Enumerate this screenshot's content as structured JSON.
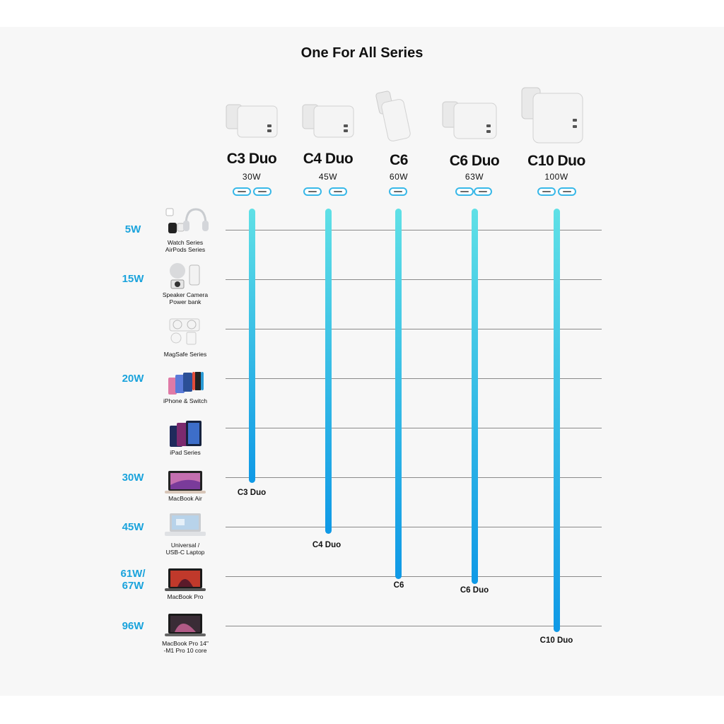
{
  "title": "One For All Series",
  "products": [
    {
      "name": "C3 Duo",
      "power": "30W",
      "ports": 2,
      "end_label": "C3 Duo"
    },
    {
      "name": "C4 Duo",
      "power": "45W",
      "ports": 2,
      "end_label": "C4 Duo"
    },
    {
      "name": "C6",
      "power": "60W",
      "ports": 1,
      "end_label": "C6"
    },
    {
      "name": "C6 Duo",
      "power": "63W",
      "ports": 2,
      "end_label": "C6 Duo"
    },
    {
      "name": "C10 Duo",
      "power": "100W",
      "ports": 2,
      "end_label": "C10 Duo"
    }
  ],
  "levels": {
    "w5": "5W",
    "w15": "15W",
    "w20": "20W",
    "w30": "30W",
    "w45": "45W",
    "w61_67": [
      "61W/",
      "67W"
    ],
    "w96": "96W"
  },
  "devices": {
    "watch": [
      "Watch Series",
      "AirPods Series"
    ],
    "speaker": [
      "Speaker Camera",
      "Power bank"
    ],
    "magsafe": [
      "MagSafe Series"
    ],
    "iphone": [
      "iPhone & Switch"
    ],
    "ipad": [
      "iPad Series"
    ],
    "macbook_air": [
      "MacBook Air"
    ],
    "laptop": [
      "Universal /",
      "USB-C Laptop"
    ],
    "macbook_pro": [
      "MacBook Pro"
    ],
    "macbook_pro14": [
      "MacBook Pro 14\"",
      "-M1 Pro  10 core"
    ]
  },
  "colors": {
    "accent": "#1aa3dc",
    "bar_top": "#5fe0e6",
    "bar_bottom": "#0f99e6"
  }
}
